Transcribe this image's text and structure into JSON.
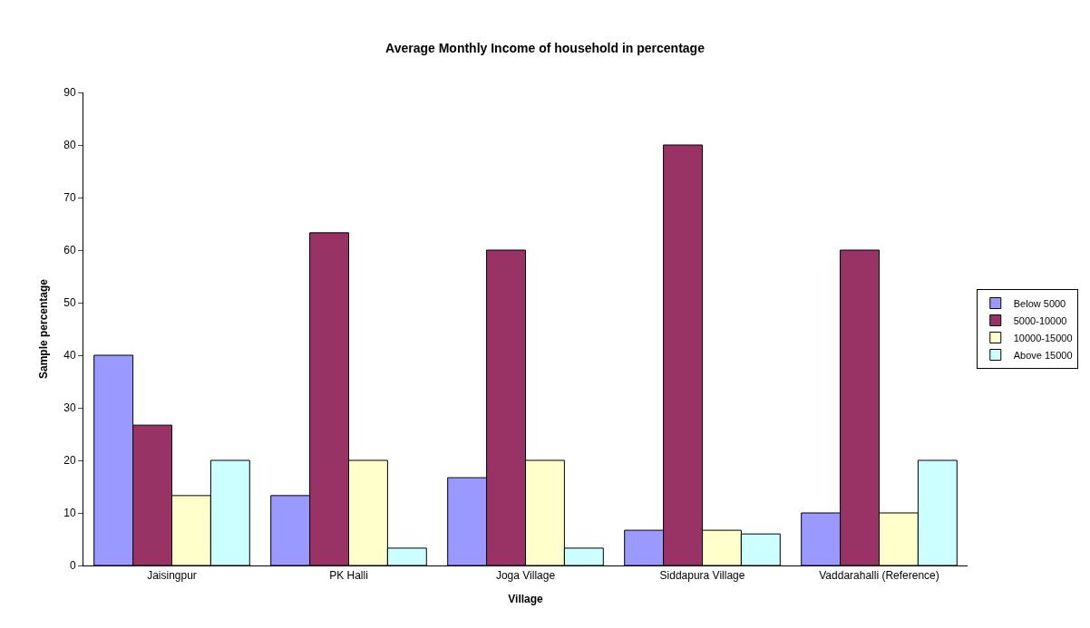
{
  "chart_data": {
    "type": "bar",
    "title": "Average Monthly Income of household in percentage",
    "xlabel": "Village",
    "ylabel": "Sample percentage",
    "categories": [
      "Jaisingpur",
      "PK Halli",
      "Joga Village",
      "Siddapura Village",
      "Vaddarahalli (Reference)"
    ],
    "series": [
      {
        "name": "Below 5000",
        "color": "#9999ff",
        "values": [
          40,
          13.3,
          16.7,
          6.7,
          10
        ]
      },
      {
        "name": "5000-10000",
        "color": "#993366",
        "values": [
          26.7,
          63.3,
          60,
          80,
          60
        ]
      },
      {
        "name": "10000-15000",
        "color": "#ffffcc",
        "values": [
          13.3,
          20,
          20,
          6.7,
          10
        ]
      },
      {
        "name": "Above 15000",
        "color": "#ccffff",
        "values": [
          20,
          3.3,
          3.3,
          6,
          20
        ]
      }
    ],
    "ylim": [
      0,
      90
    ],
    "yticks": [
      0,
      10,
      20,
      30,
      40,
      50,
      60,
      70,
      80,
      90
    ],
    "legend": "right"
  }
}
